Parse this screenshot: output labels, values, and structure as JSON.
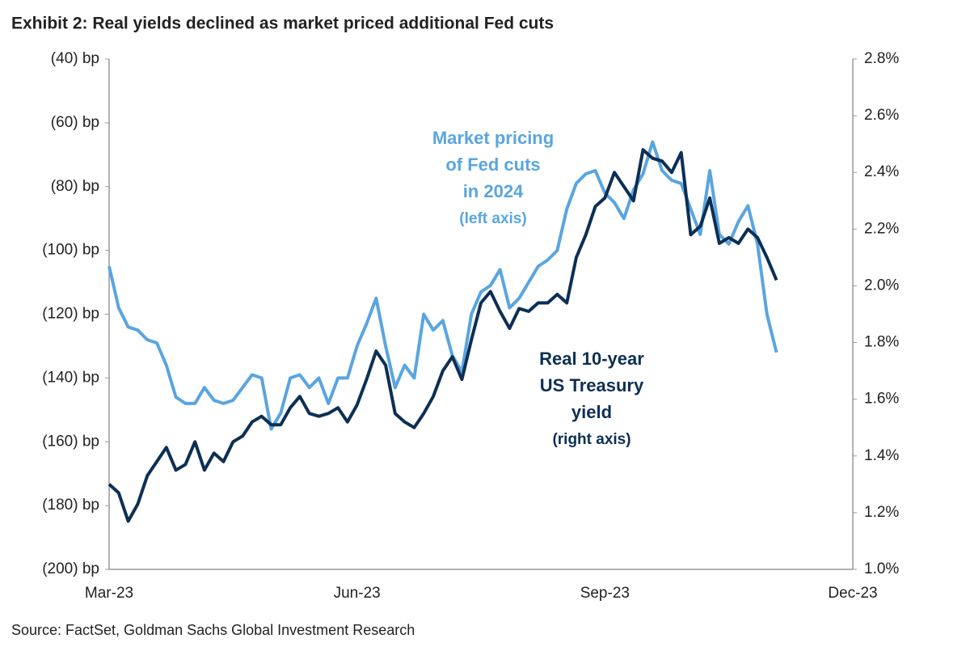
{
  "chart_data": {
    "type": "line",
    "title": "Exhibit 2: Real yields declined as market priced additional Fed cuts",
    "source": "Source: FactSet, Goldman Sachs Global Investment Research",
    "categories": [
      "Mar-23",
      null,
      null,
      null,
      null,
      null,
      null,
      null,
      null,
      null,
      null,
      null,
      null,
      null,
      null,
      null,
      null,
      null,
      null,
      null,
      null,
      null,
      null,
      null,
      null,
      null,
      "Jun-23",
      null,
      null,
      null,
      null,
      null,
      null,
      null,
      null,
      null,
      null,
      null,
      null,
      null,
      null,
      null,
      null,
      null,
      null,
      null,
      null,
      null,
      null,
      null,
      null,
      null,
      "Sep-23",
      null,
      null,
      null,
      null,
      null,
      null,
      null,
      null,
      null,
      null,
      null,
      null,
      null,
      null,
      null,
      null,
      null,
      null,
      null,
      null,
      null,
      null,
      null,
      null,
      null,
      "Dec-23"
    ],
    "ylim": [
      -200,
      -40
    ],
    "yticks": [
      {
        "value": -200,
        "label": "(200) bp"
      },
      {
        "value": -180,
        "label": "(180) bp"
      },
      {
        "value": -160,
        "label": "(160) bp"
      },
      {
        "value": -140,
        "label": "(140) bp"
      },
      {
        "value": -120,
        "label": "(120) bp"
      },
      {
        "value": -100,
        "label": "(100) bp"
      },
      {
        "value": -80,
        "label": "(80) bp"
      },
      {
        "value": -60,
        "label": "(60) bp"
      },
      {
        "value": -40,
        "label": "(40) bp"
      }
    ],
    "y2lim": [
      1.0,
      2.8
    ],
    "y2ticks": [
      {
        "value": 1.0,
        "label": "1.0%"
      },
      {
        "value": 1.2,
        "label": "1.2%"
      },
      {
        "value": 1.4,
        "label": "1.4%"
      },
      {
        "value": 1.6,
        "label": "1.6%"
      },
      {
        "value": 1.8,
        "label": "1.8%"
      },
      {
        "value": 2.0,
        "label": "2.0%"
      },
      {
        "value": 2.2,
        "label": "2.2%"
      },
      {
        "value": 2.4,
        "label": "2.4%"
      },
      {
        "value": 2.6,
        "label": "2.6%"
      },
      {
        "value": 2.8,
        "label": "2.8%"
      }
    ],
    "series": [
      {
        "name": "Market pricing of Fed cuts in 2024",
        "color": "#5aa5e0",
        "axis": "y",
        "values": [
          -105,
          -118,
          -124,
          -125,
          -128,
          -129,
          -136,
          -146,
          -148,
          -148,
          -143,
          -147,
          -148,
          -147,
          -143,
          -139,
          -140,
          -156,
          -151,
          -140,
          -139,
          -143,
          -140,
          -148,
          -140,
          -140,
          -130,
          -123,
          -115,
          -130,
          -143,
          -136,
          -140,
          -120,
          -125,
          -122,
          -133,
          -138,
          -120,
          -113,
          -111,
          -106,
          -118,
          -115,
          -110,
          -105,
          -103,
          -100,
          -87,
          -79,
          -76,
          -75,
          -82,
          -85,
          -90,
          -81,
          -76,
          -66,
          -75,
          -78,
          -79,
          -87,
          -95,
          -75,
          -95,
          -98,
          -91,
          -86,
          -98,
          -120,
          -132,
          null,
          null,
          null,
          null,
          null,
          null,
          null,
          null
        ]
      },
      {
        "name": "Real 10-year US Treasury yield",
        "color": "#0d2f55",
        "axis": "y2",
        "values": [
          1.3,
          1.27,
          1.17,
          1.23,
          1.33,
          1.38,
          1.43,
          1.35,
          1.37,
          1.45,
          1.35,
          1.41,
          1.38,
          1.45,
          1.47,
          1.52,
          1.54,
          1.51,
          1.51,
          1.57,
          1.61,
          1.55,
          1.54,
          1.55,
          1.57,
          1.52,
          1.58,
          1.67,
          1.77,
          1.72,
          1.55,
          1.52,
          1.5,
          1.55,
          1.61,
          1.7,
          1.75,
          1.67,
          1.81,
          1.94,
          1.98,
          1.91,
          1.85,
          1.92,
          1.91,
          1.94,
          1.94,
          1.97,
          1.94,
          2.1,
          2.18,
          2.28,
          2.31,
          2.4,
          2.35,
          2.3,
          2.48,
          2.45,
          2.44,
          2.4,
          2.47,
          2.18,
          2.21,
          2.31,
          2.15,
          2.17,
          2.15,
          2.2,
          2.17,
          2.1,
          2.02,
          null,
          null,
          null,
          null,
          null,
          null,
          null,
          null
        ]
      }
    ],
    "annotations": [
      {
        "series": 0,
        "lines": [
          "Market pricing",
          "of Fed cuts",
          "in 2024",
          "(left axis)"
        ]
      },
      {
        "series": 1,
        "lines": [
          "Real 10-year",
          "US Treasury",
          "yield",
          "(right axis)"
        ]
      }
    ]
  }
}
